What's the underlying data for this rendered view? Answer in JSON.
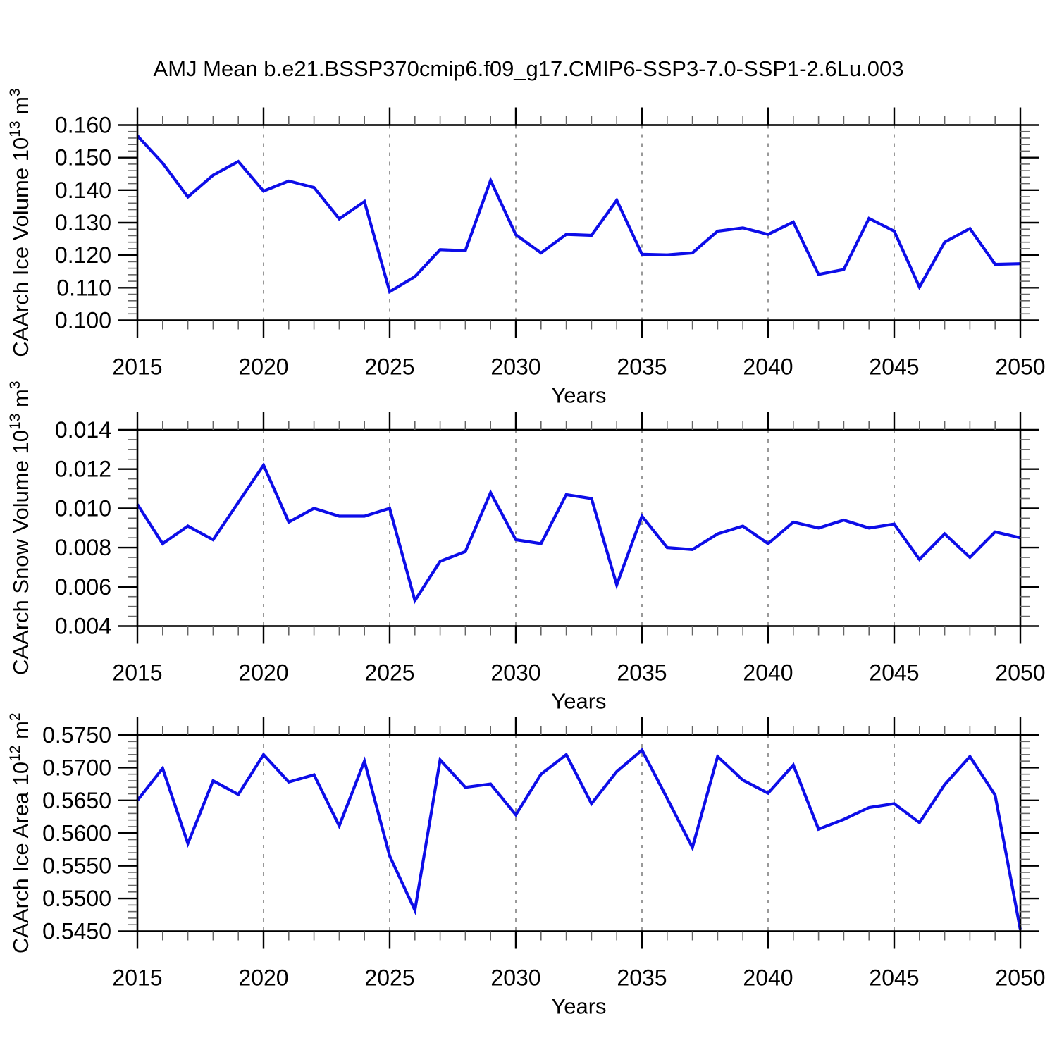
{
  "title": "AMJ Mean b.e21.BSSP370cmip6.f09_g17.CMIP6-SSP3-7.0-SSP1-2.6Lu.003",
  "xlabel": "Years",
  "colors": {
    "line": "#0d0de8",
    "grid": "#999999",
    "frame": "#000000",
    "minor_tick": "#666666"
  },
  "chart_data": [
    {
      "type": "line",
      "ylabel": "CAArch Ice Volume 10¹³ m³",
      "ylabel_parts": {
        "prefix": "CAArch Ice Volume 10",
        "exp": "13",
        "unit": " m",
        "unit_exp": "3"
      },
      "xlabel": "Years",
      "x": [
        2015,
        2016,
        2017,
        2018,
        2019,
        2020,
        2021,
        2022,
        2023,
        2024,
        2025,
        2026,
        2027,
        2028,
        2029,
        2030,
        2031,
        2032,
        2033,
        2034,
        2035,
        2036,
        2037,
        2038,
        2039,
        2040,
        2041,
        2042,
        2043,
        2044,
        2045,
        2046,
        2047,
        2048,
        2049,
        2050
      ],
      "values": [
        0.1567,
        0.1483,
        0.1379,
        0.1446,
        0.1488,
        0.1397,
        0.1428,
        0.1408,
        0.1312,
        0.1365,
        0.1088,
        0.1134,
        0.1217,
        0.1214,
        0.143,
        0.1263,
        0.1207,
        0.1264,
        0.1261,
        0.1369,
        0.1203,
        0.1201,
        0.1207,
        0.1274,
        0.1284,
        0.1264,
        0.1302,
        0.1141,
        0.1156,
        0.1313,
        0.1274,
        0.1102,
        0.124,
        0.1282,
        0.1172,
        0.1174
      ],
      "ylim": [
        0.1,
        0.16
      ],
      "ytick_labels": [
        "0.160",
        "0.150",
        "0.140",
        "0.130",
        "0.120",
        "0.110",
        "0.100"
      ],
      "yticks": [
        0.16,
        0.15,
        0.14,
        0.13,
        0.12,
        0.11,
        0.1
      ],
      "yminor_step": 0.002,
      "xticks": [
        2015,
        2020,
        2025,
        2030,
        2035,
        2040,
        2045,
        2050
      ],
      "xtick_labels": [
        "2015",
        "2020",
        "2025",
        "2030",
        "2035",
        "2040",
        "2045",
        "2050"
      ],
      "grid_years": [
        2020,
        2025,
        2030,
        2035,
        2040,
        2045
      ],
      "grid": "vertical-dashed",
      "legend": null
    },
    {
      "type": "line",
      "ylabel": "CAArch Snow Volume 10¹³ m³",
      "ylabel_parts": {
        "prefix": "CAArch Snow Volume 10",
        "exp": "13",
        "unit": " m",
        "unit_exp": "3"
      },
      "xlabel": "Years",
      "x": [
        2015,
        2016,
        2017,
        2018,
        2019,
        2020,
        2021,
        2022,
        2023,
        2024,
        2025,
        2026,
        2027,
        2028,
        2029,
        2030,
        2031,
        2032,
        2033,
        2034,
        2035,
        2036,
        2037,
        2038,
        2039,
        2040,
        2041,
        2042,
        2043,
        2044,
        2045,
        2046,
        2047,
        2048,
        2049,
        2050
      ],
      "values": [
        0.0102,
        0.0082,
        0.0091,
        0.0084,
        0.0103,
        0.0122,
        0.0093,
        0.01,
        0.0096,
        0.0096,
        0.01,
        0.0053,
        0.0073,
        0.0078,
        0.0108,
        0.0084,
        0.0082,
        0.0107,
        0.0105,
        0.0061,
        0.0096,
        0.008,
        0.0079,
        0.0087,
        0.0091,
        0.0082,
        0.0093,
        0.009,
        0.0094,
        0.009,
        0.0092,
        0.0074,
        0.0087,
        0.0075,
        0.0088,
        0.0085
      ],
      "ylim": [
        0.004,
        0.014
      ],
      "ytick_labels": [
        "0.014",
        "0.012",
        "0.010",
        "0.008",
        "0.006",
        "0.004"
      ],
      "yticks": [
        0.014,
        0.012,
        0.01,
        0.008,
        0.006,
        0.004
      ],
      "yminor_step": 0.0005,
      "xticks": [
        2015,
        2020,
        2025,
        2030,
        2035,
        2040,
        2045,
        2050
      ],
      "xtick_labels": [
        "2015",
        "2020",
        "2025",
        "2030",
        "2035",
        "2040",
        "2045",
        "2050"
      ],
      "grid_years": [
        2020,
        2025,
        2030,
        2035,
        2040,
        2045
      ],
      "grid": "vertical-dashed",
      "legend": null
    },
    {
      "type": "line",
      "ylabel": "CAArch Ice Area 10¹² m²",
      "ylabel_parts": {
        "prefix": "CAArch Ice Area 10",
        "exp": "12",
        "unit": " m",
        "unit_exp": "2"
      },
      "xlabel": "Years",
      "x": [
        2015,
        2016,
        2017,
        2018,
        2019,
        2020,
        2021,
        2022,
        2023,
        2024,
        2025,
        2026,
        2027,
        2028,
        2029,
        2030,
        2031,
        2032,
        2033,
        2034,
        2035,
        2036,
        2037,
        2038,
        2039,
        2040,
        2041,
        2042,
        2043,
        2044,
        2045,
        2046,
        2047,
        2048,
        2049,
        2050
      ],
      "values": [
        0.565,
        0.5699,
        0.5584,
        0.568,
        0.5659,
        0.572,
        0.5678,
        0.5689,
        0.5611,
        0.571,
        0.5565,
        0.5482,
        0.5712,
        0.567,
        0.5675,
        0.5628,
        0.569,
        0.572,
        0.5645,
        0.5694,
        0.5727,
        0.5653,
        0.5578,
        0.5717,
        0.5681,
        0.5661,
        0.5704,
        0.5606,
        0.5621,
        0.5639,
        0.5645,
        0.5616,
        0.5674,
        0.5717,
        0.5658,
        0.5452
      ],
      "ylim": [
        0.545,
        0.575
      ],
      "ytick_labels": [
        "0.5750",
        "0.5700",
        "0.5650",
        "0.5600",
        "0.5550",
        "0.5500",
        "0.5450"
      ],
      "yticks": [
        0.575,
        0.57,
        0.565,
        0.56,
        0.555,
        0.55,
        0.545
      ],
      "yminor_step": 0.001,
      "xticks": [
        2015,
        2020,
        2025,
        2030,
        2035,
        2040,
        2045,
        2050
      ],
      "xtick_labels": [
        "2015",
        "2020",
        "2025",
        "2030",
        "2035",
        "2040",
        "2045",
        "2050"
      ],
      "grid_years": [
        2020,
        2025,
        2030,
        2035,
        2040,
        2045
      ],
      "grid": "vertical-dashed",
      "legend": null
    }
  ]
}
